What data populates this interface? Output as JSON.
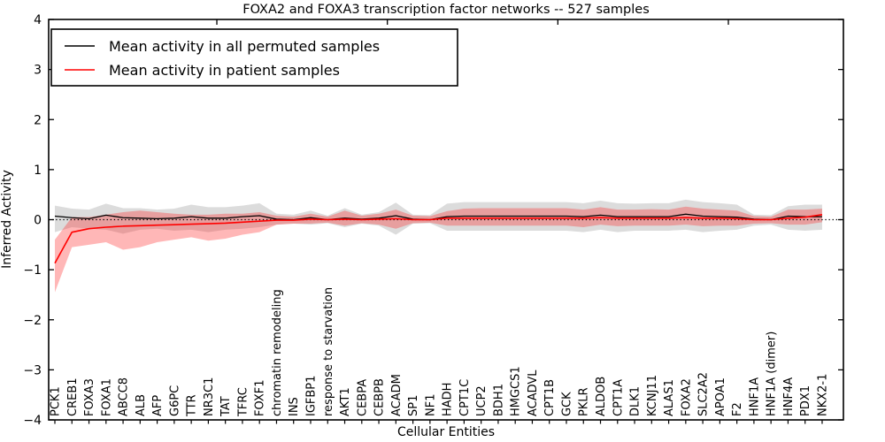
{
  "title": "FOXA2 and FOXA3 transcription factor networks -- 527 samples",
  "legend": {
    "entries": [
      {
        "label": "Mean activity in all permuted samples",
        "color": "#000000"
      },
      {
        "label": "Mean activity in patient samples",
        "color": "#ff0000"
      }
    ]
  },
  "chart_data": {
    "type": "line",
    "title": "FOXA2 and FOXA3 transcription factor networks -- 527 samples",
    "xlabel": "Cellular Entities",
    "ylabel": "Inferred Activity",
    "ylim": [
      -4,
      4
    ],
    "yticks": [
      4,
      3,
      2,
      1,
      0,
      -1,
      -2,
      -3,
      -4
    ],
    "grid": false,
    "legend_position": "upper left",
    "zero_line": {
      "y": 0,
      "style": "dotted",
      "color": "#000000"
    },
    "categories": [
      "PCK1",
      "CREB1",
      "FOXA3",
      "FOXA1",
      "ABCC8",
      "ALB",
      "AFP",
      "G6PC",
      "TTR",
      "NR3C1",
      "TAT",
      "TFRC",
      "FOXF1",
      "chromatin remodeling",
      "INS",
      "IGFBP1",
      "response to starvation",
      "AKT1",
      "CEBPA",
      "CEBPB",
      "ACADM",
      "SP1",
      "NF1",
      "HADH",
      "CPT1C",
      "UCP2",
      "BDH1",
      "HMGCS1",
      "ACADVL",
      "CPT1B",
      "GCK",
      "PKLR",
      "ALDOB",
      "CPT1A",
      "DLK1",
      "KCNJ11",
      "ALAS1",
      "FOXA2",
      "SLC2A2",
      "APOA1",
      "F2",
      "HNF1A",
      "HNF1A (dimer)",
      "HNF4A",
      "PDX1",
      "NKX2-1"
    ],
    "series": [
      {
        "name": "Mean activity in all permuted samples",
        "color": "#000000",
        "line_width": 1.3,
        "band_color": "rgba(130,130,130,0.28)",
        "values": [
          0.07,
          0.04,
          0.02,
          0.09,
          0.04,
          0.03,
          0.02,
          0.03,
          0.06,
          0.03,
          0.03,
          0.06,
          0.08,
          0.01,
          0.0,
          0.04,
          0.0,
          0.03,
          0.01,
          0.03,
          0.08,
          0.01,
          0.0,
          0.06,
          0.07,
          0.07,
          0.07,
          0.07,
          0.07,
          0.07,
          0.07,
          0.06,
          0.09,
          0.06,
          0.06,
          0.06,
          0.06,
          0.11,
          0.07,
          0.06,
          0.05,
          0.01,
          0.0,
          0.07,
          0.06,
          0.06
        ],
        "band_upper": [
          0.28,
          0.22,
          0.2,
          0.32,
          0.23,
          0.23,
          0.2,
          0.22,
          0.3,
          0.25,
          0.25,
          0.28,
          0.33,
          0.12,
          0.1,
          0.18,
          0.08,
          0.23,
          0.1,
          0.15,
          0.34,
          0.1,
          0.09,
          0.32,
          0.35,
          0.35,
          0.35,
          0.35,
          0.35,
          0.35,
          0.35,
          0.33,
          0.38,
          0.33,
          0.32,
          0.33,
          0.33,
          0.4,
          0.35,
          0.33,
          0.3,
          0.1,
          0.09,
          0.27,
          0.3,
          0.3
        ],
        "band_lower": [
          -0.25,
          -0.15,
          -0.18,
          -0.2,
          -0.28,
          -0.2,
          -0.18,
          -0.22,
          -0.2,
          -0.25,
          -0.2,
          -0.18,
          -0.15,
          -0.1,
          -0.08,
          -0.1,
          -0.07,
          -0.15,
          -0.08,
          -0.12,
          -0.3,
          -0.08,
          -0.07,
          -0.22,
          -0.22,
          -0.22,
          -0.22,
          -0.22,
          -0.22,
          -0.22,
          -0.22,
          -0.25,
          -0.2,
          -0.25,
          -0.22,
          -0.22,
          -0.22,
          -0.2,
          -0.25,
          -0.22,
          -0.2,
          -0.12,
          -0.1,
          -0.2,
          -0.22,
          -0.2
        ]
      },
      {
        "name": "Mean activity in patient samples",
        "color": "#ff0000",
        "line_width": 1.6,
        "band_color": "rgba(255,30,30,0.32)",
        "values": [
          -0.87,
          -0.25,
          -0.18,
          -0.15,
          -0.13,
          -0.12,
          -0.11,
          -0.1,
          -0.09,
          -0.08,
          -0.07,
          -0.05,
          -0.03,
          -0.01,
          -0.01,
          0.01,
          0.0,
          0.01,
          0.0,
          0.01,
          0.02,
          0.0,
          0.0,
          0.03,
          0.03,
          0.03,
          0.03,
          0.03,
          0.03,
          0.03,
          0.03,
          0.03,
          0.04,
          0.03,
          0.03,
          0.03,
          0.03,
          0.04,
          0.03,
          0.03,
          0.02,
          0.0,
          0.0,
          0.03,
          0.05,
          0.1
        ],
        "band_upper": [
          -0.4,
          0.05,
          0.05,
          0.1,
          0.15,
          0.18,
          0.15,
          0.12,
          0.1,
          0.1,
          0.12,
          0.12,
          0.15,
          0.08,
          0.06,
          0.12,
          0.06,
          0.18,
          0.08,
          0.12,
          0.2,
          0.08,
          0.07,
          0.17,
          0.22,
          0.23,
          0.23,
          0.23,
          0.23,
          0.23,
          0.23,
          0.2,
          0.25,
          0.2,
          0.2,
          0.21,
          0.2,
          0.26,
          0.22,
          0.2,
          0.18,
          0.07,
          0.06,
          0.2,
          0.2,
          0.22
        ],
        "band_lower": [
          -1.45,
          -0.55,
          -0.5,
          -0.45,
          -0.6,
          -0.55,
          -0.45,
          -0.4,
          -0.35,
          -0.42,
          -0.38,
          -0.3,
          -0.25,
          -0.1,
          -0.08,
          -0.08,
          -0.06,
          -0.12,
          -0.07,
          -0.1,
          -0.18,
          -0.07,
          -0.06,
          -0.12,
          -0.12,
          -0.12,
          -0.12,
          -0.12,
          -0.12,
          -0.12,
          -0.12,
          -0.15,
          -0.1,
          -0.13,
          -0.12,
          -0.12,
          -0.12,
          -0.1,
          -0.13,
          -0.12,
          -0.12,
          -0.08,
          -0.07,
          -0.1,
          -0.1,
          -0.05
        ]
      }
    ]
  }
}
